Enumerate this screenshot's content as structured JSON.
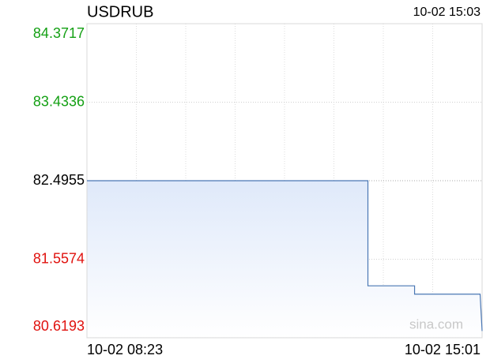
{
  "chart_data": {
    "type": "line",
    "title": "USDRUB",
    "timestamp": "10-02 15:03",
    "watermark": "sina.com",
    "x": [
      "10-02 08:23",
      "10-02 13:06",
      "10-02 13:06",
      "10-02 13:53",
      "10-02 13:53",
      "10-02 14:59",
      "10-02 15:01"
    ],
    "series": [
      {
        "name": "USDRUB",
        "color": "#4a77b4",
        "values": [
          82.4955,
          82.4955,
          81.24,
          81.24,
          81.14,
          81.14,
          80.7
        ]
      }
    ],
    "xlim": [
      "10-02 08:23",
      "10-02 15:01"
    ],
    "ylim": [
      80.6193,
      84.3717
    ],
    "yticks": [
      80.6193,
      81.5574,
      82.4955,
      83.4336,
      84.3717
    ],
    "ytick_colors": [
      "#e0120e",
      "#e0120e",
      "#000000",
      "#14a014",
      "#14a014"
    ],
    "grid": true
  }
}
